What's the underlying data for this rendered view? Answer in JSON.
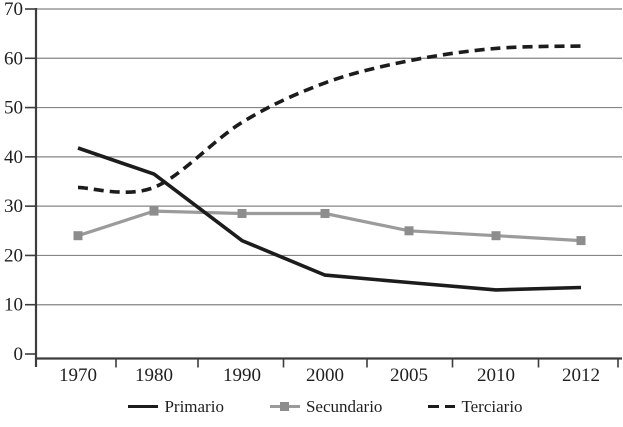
{
  "chart_data": {
    "type": "line",
    "title": "",
    "categories": [
      "1970",
      "1980",
      "1990",
      "2000",
      "2005",
      "2010",
      "2012"
    ],
    "series": [
      {
        "name": "Primario",
        "values": [
          41.8,
          36.5,
          23,
          16,
          14.5,
          13,
          13.5
        ],
        "color": "#1c1c1c",
        "line": "solid",
        "marker": "none",
        "smooth": false
      },
      {
        "name": "Secundario",
        "values": [
          24,
          29,
          28.5,
          28.5,
          25,
          24,
          23
        ],
        "color": "#9b9b9b",
        "line": "solid",
        "marker": "square",
        "marker_color": "#8d8d8d",
        "smooth": false
      },
      {
        "name": "Terciario",
        "values": [
          33.8,
          33.8,
          47,
          55,
          59.5,
          62,
          62.5
        ],
        "color": "#1c1c1c",
        "line": "dashed",
        "marker": "none",
        "smooth": true
      }
    ],
    "ylim": [
      0,
      70
    ],
    "yticks": [
      0,
      10,
      20,
      30,
      40,
      50,
      60,
      70
    ],
    "xlabel": "",
    "ylabel": "",
    "grid": "horizontal",
    "legend_position": "bottom",
    "colors": {
      "axis": "#3d3d3d",
      "grid": "#858585",
      "text": "#1f1f1f"
    }
  }
}
